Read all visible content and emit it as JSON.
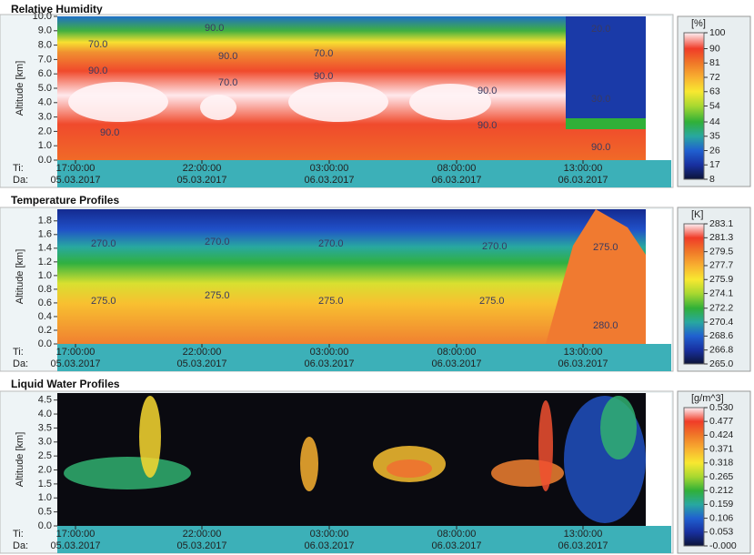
{
  "chart_data": [
    {
      "type": "heatmap",
      "title": "Relative Humidity",
      "ylabel": "Altitude [km]",
      "ylim": [
        0,
        10
      ],
      "yticks": [
        {
          "value": 0,
          "label": "0.0"
        },
        {
          "value": 1,
          "label": "1.0"
        },
        {
          "value": 2,
          "label": "2.0"
        },
        {
          "value": 3,
          "label": "3.0"
        },
        {
          "value": 4,
          "label": "4.0"
        },
        {
          "value": 5,
          "label": "5.0"
        },
        {
          "value": 6,
          "label": "6.0"
        },
        {
          "value": 7,
          "label": "7.0"
        },
        {
          "value": 8,
          "label": "8.0"
        },
        {
          "value": 9,
          "label": "9.0"
        },
        {
          "value": 10,
          "label": "10.0"
        }
      ],
      "row_labels": [
        "Ti:",
        "Da:"
      ],
      "x_labels": [
        {
          "time": "17:00:00",
          "date": "05.03.2017"
        },
        {
          "time": "22:00:00",
          "date": "05.03.2017"
        },
        {
          "time": "03:00:00",
          "date": "06.03.2017"
        },
        {
          "time": "08:00:00",
          "date": "06.03.2017"
        },
        {
          "time": "13:00:00",
          "date": "06.03.2017"
        }
      ],
      "colorbar": {
        "unit": "[%]",
        "ticks": [
          100,
          90,
          81,
          72,
          63,
          54,
          44,
          35,
          26,
          17,
          8
        ],
        "colors": [
          "#fff0f4",
          "#f03c28",
          "#f07828",
          "#f8b030",
          "#f8e830",
          "#a8d830",
          "#30b038",
          "#28a8a0",
          "#2060d0",
          "#1830a0",
          "#0c1438"
        ]
      },
      "annotations": [
        "90.0",
        "70.0",
        "90.0",
        "70.0",
        "90.0",
        "90.0",
        "70.0",
        "90.0",
        "90.0",
        "90.0",
        "20.0",
        "30.0",
        "90.0"
      ]
    },
    {
      "type": "heatmap",
      "title": "Temperature Profiles",
      "ylabel": "Altitude [km]",
      "ylim": [
        0,
        1.97
      ],
      "yticks": [
        {
          "value": 0,
          "label": "0.0"
        },
        {
          "value": 0.2,
          "label": "0.2"
        },
        {
          "value": 0.4,
          "label": "0.4"
        },
        {
          "value": 0.6,
          "label": "0.6"
        },
        {
          "value": 0.8,
          "label": "0.8"
        },
        {
          "value": 1,
          "label": "1.0"
        },
        {
          "value": 1.2,
          "label": "1.2"
        },
        {
          "value": 1.4,
          "label": "1.4"
        },
        {
          "value": 1.6,
          "label": "1.6"
        },
        {
          "value": 1.8,
          "label": "1.8"
        }
      ],
      "row_labels": [
        "Ti:",
        "Da:"
      ],
      "x_labels": [
        {
          "time": "17:00:00",
          "date": "05.03.2017"
        },
        {
          "time": "22:00:00",
          "date": "05.03.2017"
        },
        {
          "time": "03:00:00",
          "date": "06.03.2017"
        },
        {
          "time": "08:00:00",
          "date": "06.03.2017"
        },
        {
          "time": "13:00:00",
          "date": "06.03.2017"
        }
      ],
      "colorbar": {
        "unit": "[K]",
        "ticks": [
          283.1,
          281.3,
          279.5,
          277.7,
          275.9,
          274.1,
          272.2,
          270.4,
          268.6,
          266.8,
          {
            "value": 265,
            "label": "265.0"
          }
        ],
        "colors": [
          "#fff0f4",
          "#f03c28",
          "#f07828",
          "#f8b030",
          "#f8e830",
          "#a8d830",
          "#30b038",
          "#28a8a0",
          "#2060d0",
          "#1830a0",
          "#0c1438"
        ]
      },
      "annotations": [
        "270.0",
        "270.0",
        "270.0",
        "270.0",
        "275.0",
        "275.0",
        "275.0",
        "275.0",
        "275.0",
        "280.0"
      ]
    },
    {
      "type": "heatmap",
      "title": "Liquid Water Profiles",
      "ylabel": "Altitude [km]",
      "ylim": [
        0,
        4.75
      ],
      "yticks": [
        {
          "value": 0,
          "label": "0.0"
        },
        {
          "value": 0.5,
          "label": "0.5"
        },
        {
          "value": 1,
          "label": "1.0"
        },
        {
          "value": 1.5,
          "label": "1.5"
        },
        {
          "value": 2,
          "label": "2.0"
        },
        {
          "value": 2.5,
          "label": "2.5"
        },
        {
          "value": 3,
          "label": "3.0"
        },
        {
          "value": 3.5,
          "label": "3.5"
        },
        {
          "value": 4,
          "label": "4.0"
        },
        {
          "value": 4.5,
          "label": "4.5"
        }
      ],
      "row_labels": [
        "Ti:",
        "Da:"
      ],
      "x_labels": [
        {
          "time": "17:00:00",
          "date": "05.03.2017"
        },
        {
          "time": "22:00:00",
          "date": "05.03.2017"
        },
        {
          "time": "03:00:00",
          "date": "06.03.2017"
        },
        {
          "time": "08:00:00",
          "date": "06.03.2017"
        },
        {
          "time": "13:00:00",
          "date": "06.03.2017"
        }
      ],
      "colorbar": {
        "unit": "[g/m^3]",
        "ticks": [
          {
            "value": 0.53,
            "label": "0.530"
          },
          0.477,
          0.424,
          0.371,
          0.318,
          0.265,
          0.212,
          0.159,
          0.106,
          0.053,
          {
            "value": 0,
            "label": "-0.000"
          }
        ],
        "colors": [
          "#fff0f4",
          "#f03c28",
          "#f07828",
          "#f8b030",
          "#f8e830",
          "#a8d830",
          "#30b038",
          "#28a8a0",
          "#2060d0",
          "#1830a0",
          "#0c1438"
        ]
      },
      "annotations": []
    }
  ]
}
